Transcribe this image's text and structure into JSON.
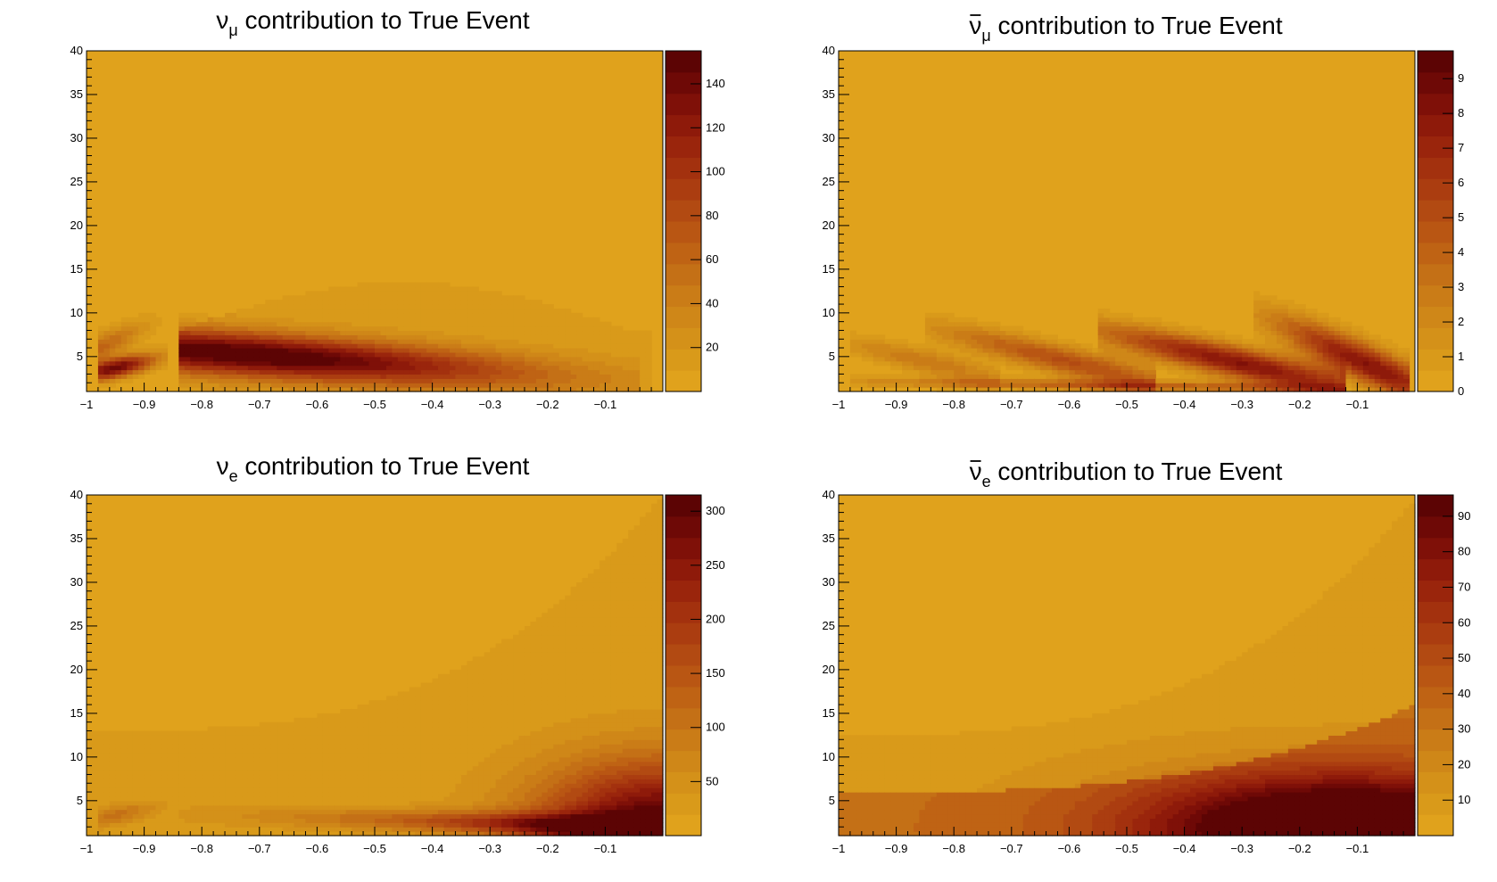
{
  "figure": {
    "palette": [
      "#e0a21c",
      "#d99a1a",
      "#d49119",
      "#cf8718",
      "#ca7c17",
      "#c47016",
      "#bf6314",
      "#b95613",
      "#b24a12",
      "#ab3d10",
      "#a3310e",
      "#9a250c",
      "#8e1a0a",
      "#7f1008",
      "#6e0906",
      "#5c0404"
    ]
  },
  "chart_data": [
    {
      "type": "heatmap",
      "title": {
        "main": "ν",
        "sub": "μ",
        "rest": " contribution to True Event",
        "bar": false
      },
      "xlabel": "",
      "ylabel": "",
      "xlim": [
        -1,
        0
      ],
      "ylim": [
        1,
        40
      ],
      "xticks": [
        -1,
        -0.9,
        -0.8,
        -0.7,
        -0.6,
        -0.5,
        -0.4,
        -0.3,
        -0.2,
        -0.1
      ],
      "xticklabels": [
        "−1",
        "−0.9",
        "−0.8",
        "−0.7",
        "−0.6",
        "−0.5",
        "−0.4",
        "−0.3",
        "−0.2",
        "−0.1"
      ],
      "yticks": [
        5,
        10,
        15,
        20,
        25,
        30,
        35,
        40
      ],
      "yticklabels": [
        "5",
        "10",
        "15",
        "20",
        "25",
        "30",
        "35",
        "40"
      ],
      "zlim": [
        0,
        155
      ],
      "zticks": [
        20,
        40,
        60,
        80,
        100,
        120,
        140
      ],
      "zticklabels": [
        "20",
        "40",
        "60",
        "80",
        "100",
        "120",
        "140"
      ],
      "features": [
        {
          "kind": "band",
          "x0": -0.84,
          "x1": -0.04,
          "y_at_x0": 5.8,
          "y_at_x1": 2.2,
          "thickness": 3.2,
          "peak_x": -0.72,
          "peak": 150
        },
        {
          "kind": "band",
          "x0": -0.98,
          "x1": -0.86,
          "y_at_x0": 3.3,
          "y_at_x1": 5.0,
          "thickness": 1.5,
          "peak_x": -0.95,
          "peak": 140
        },
        {
          "kind": "band",
          "x0": -0.98,
          "x1": -0.86,
          "y_at_x0": 6.0,
          "y_at_x1": 9.5,
          "thickness": 2.0,
          "peak_x": -0.97,
          "peak": 60
        },
        {
          "kind": "halo",
          "x0": -0.84,
          "x1": -0.02,
          "ytop": 13.5,
          "level": 12
        }
      ]
    },
    {
      "type": "heatmap",
      "title": {
        "main": "ν",
        "sub": "μ",
        "rest": " contribution to True Event",
        "bar": true
      },
      "xlabel": "",
      "ylabel": "",
      "xlim": [
        -1,
        0
      ],
      "ylim": [
        1,
        40
      ],
      "xticks": [
        -1,
        -0.9,
        -0.8,
        -0.7,
        -0.6,
        -0.5,
        -0.4,
        -0.3,
        -0.2,
        -0.1
      ],
      "xticklabels": [
        "−1",
        "−0.9",
        "−0.8",
        "−0.7",
        "−0.6",
        "−0.5",
        "−0.4",
        "−0.3",
        "−0.2",
        "−0.1"
      ],
      "yticks": [
        5,
        10,
        15,
        20,
        25,
        30,
        35,
        40
      ],
      "yticklabels": [
        "5",
        "10",
        "15",
        "20",
        "25",
        "30",
        "35",
        "40"
      ],
      "zlim": [
        0,
        9.8
      ],
      "zticks": [
        0,
        1,
        2,
        3,
        4,
        5,
        6,
        7,
        8,
        9
      ],
      "zticklabels": [
        "0",
        "1",
        "2",
        "3",
        "4",
        "5",
        "6",
        "7",
        "8",
        "9"
      ],
      "features": [
        {
          "kind": "band",
          "x0": -0.98,
          "x1": -0.72,
          "y_at_x0": 6.5,
          "y_at_x1": 2.5,
          "thickness": 1.8,
          "peak_x": -0.85,
          "peak": 3
        },
        {
          "kind": "band",
          "x0": -0.85,
          "x1": -0.45,
          "y_at_x0": 8.5,
          "y_at_x1": 2.0,
          "thickness": 2.2,
          "peak_x": -0.6,
          "peak": 5
        },
        {
          "kind": "band",
          "x0": -0.55,
          "x1": -0.12,
          "y_at_x0": 8.0,
          "y_at_x1": 1.5,
          "thickness": 2.4,
          "peak_x": -0.3,
          "peak": 8
        },
        {
          "kind": "band",
          "x0": -0.28,
          "x1": -0.01,
          "y_at_x0": 10.0,
          "y_at_x1": 2.0,
          "thickness": 3.0,
          "peak_x": -0.08,
          "peak": 8
        },
        {
          "kind": "band",
          "x0": -0.98,
          "x1": -0.12,
          "y_at_x0": 2.2,
          "y_at_x1": 1.3,
          "thickness": 0.8,
          "peak_x": -0.5,
          "peak": 4
        }
      ]
    },
    {
      "type": "heatmap",
      "title": {
        "main": "ν",
        "sub": "e",
        "rest": " contribution to True Event",
        "bar": false
      },
      "xlabel": "",
      "ylabel": "",
      "xlim": [
        -1,
        0
      ],
      "ylim": [
        1,
        40
      ],
      "xticks": [
        -1,
        -0.9,
        -0.8,
        -0.7,
        -0.6,
        -0.5,
        -0.4,
        -0.3,
        -0.2,
        -0.1
      ],
      "xticklabels": [
        "−1",
        "−0.9",
        "−0.8",
        "−0.7",
        "−0.6",
        "−0.5",
        "−0.4",
        "−0.3",
        "−0.2",
        "−0.1"
      ],
      "yticks": [
        5,
        10,
        15,
        20,
        25,
        30,
        35,
        40
      ],
      "yticklabels": [
        "5",
        "10",
        "15",
        "20",
        "25",
        "30",
        "35",
        "40"
      ],
      "zlim": [
        0,
        315
      ],
      "zticks": [
        50,
        100,
        150,
        200,
        250,
        300
      ],
      "zticklabels": [
        "50",
        "100",
        "150",
        "200",
        "250",
        "300"
      ],
      "features": [
        {
          "kind": "corner",
          "x0": 0,
          "y0": 1.5,
          "peak": 310,
          "decay_x": 0.22,
          "decay_y": 8
        },
        {
          "kind": "band",
          "x0": -0.84,
          "x1": -0.02,
          "y_at_x0": 3.5,
          "y_at_x1": 2.0,
          "thickness": 1.6,
          "peak_x": -0.1,
          "peak": 180
        },
        {
          "kind": "band",
          "x0": -0.98,
          "x1": -0.86,
          "y_at_x0": 3.0,
          "y_at_x1": 4.5,
          "thickness": 1.4,
          "peak_x": -0.95,
          "peak": 80
        },
        {
          "kind": "halo",
          "x0": -1,
          "x1": 0,
          "ytop": 13.0,
          "level": 25,
          "rise": 27
        }
      ]
    },
    {
      "type": "heatmap",
      "title": {
        "main": "ν",
        "sub": "e",
        "rest": " contribution to True Event",
        "bar": true
      },
      "xlabel": "",
      "ylabel": "",
      "xlim": [
        -1,
        0
      ],
      "ylim": [
        1,
        40
      ],
      "xticks": [
        -1,
        -0.9,
        -0.8,
        -0.7,
        -0.6,
        -0.5,
        -0.4,
        -0.3,
        -0.2,
        -0.1
      ],
      "xticklabels": [
        "−1",
        "−0.9",
        "−0.8",
        "−0.7",
        "−0.6",
        "−0.5",
        "−0.4",
        "−0.3",
        "−0.2",
        "−0.1"
      ],
      "yticks": [
        5,
        10,
        15,
        20,
        25,
        30,
        35,
        40
      ],
      "yticklabels": [
        "5",
        "10",
        "15",
        "20",
        "25",
        "30",
        "35",
        "40"
      ],
      "zlim": [
        0,
        96
      ],
      "zticks": [
        10,
        20,
        30,
        40,
        50,
        60,
        70,
        80,
        90
      ],
      "zticklabels": [
        "10",
        "20",
        "30",
        "40",
        "50",
        "60",
        "70",
        "80",
        "90"
      ],
      "features": [
        {
          "kind": "corner",
          "x0": -0.12,
          "y0": 2.0,
          "peak": 94,
          "decay_x": 0.35,
          "decay_y": 6
        },
        {
          "kind": "halo",
          "x0": -1,
          "x1": 0,
          "ytop": 12.5,
          "level": 10,
          "rise": 27
        },
        {
          "kind": "halo",
          "x0": -1,
          "x1": 0,
          "ytop": 6.0,
          "level": 25,
          "rise": 10
        }
      ]
    }
  ]
}
